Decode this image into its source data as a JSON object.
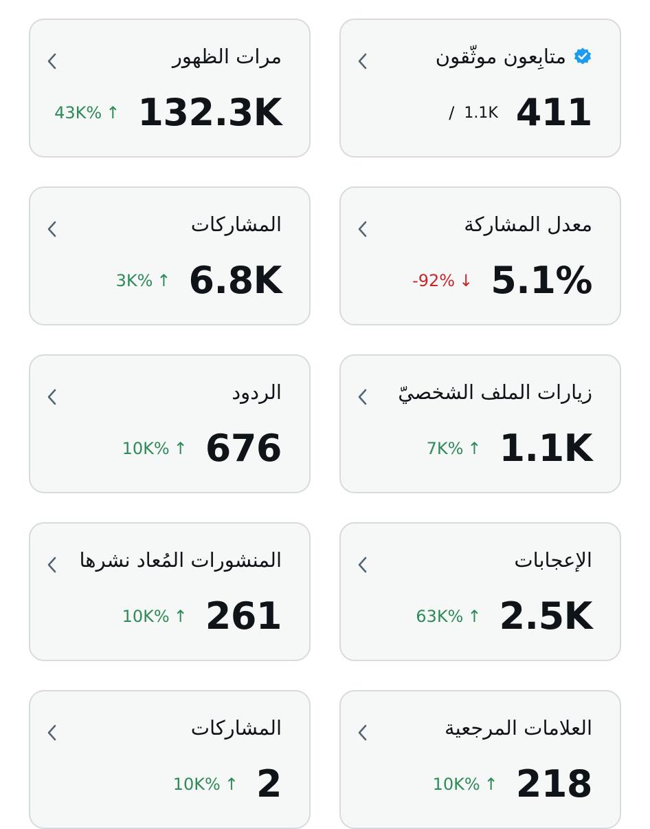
{
  "colors": {
    "up": "#2e8b57",
    "down": "#c62828",
    "verified": "#1d9bf0",
    "chevron": "#536471"
  },
  "cards": [
    {
      "title": "متابِعون موثّقون",
      "value": "411",
      "total": "1.1K",
      "separator": "/",
      "icon": "verified-badge-icon"
    },
    {
      "title": "مرات الظهور",
      "value": "132.3K",
      "change": "43K%",
      "direction": "up",
      "arrow": "↑"
    },
    {
      "title": "معدل المشاركة",
      "value": "5.1%",
      "change": "-92%",
      "direction": "down",
      "arrow": "↓"
    },
    {
      "title": "المشاركات",
      "value": "6.8K",
      "change": "3K%",
      "direction": "up",
      "arrow": "↑"
    },
    {
      "title": "زيارات الملف الشخصيّ",
      "value": "1.1K",
      "change": "7K%",
      "direction": "up",
      "arrow": "↑"
    },
    {
      "title": "الردود",
      "value": "676",
      "change": "10K%",
      "direction": "up",
      "arrow": "↑"
    },
    {
      "title": "الإعجابات",
      "value": "2.5K",
      "change": "63K%",
      "direction": "up",
      "arrow": "↑"
    },
    {
      "title": "المنشورات المُعاد نشرها",
      "value": "261",
      "change": "10K%",
      "direction": "up",
      "arrow": "↑"
    },
    {
      "title": "العلامات المرجعية",
      "value": "218",
      "change": "10K%",
      "direction": "up",
      "arrow": "↑"
    },
    {
      "title": "المشاركات",
      "value": "2",
      "change": "10K%",
      "direction": "up",
      "arrow": "↑"
    }
  ]
}
